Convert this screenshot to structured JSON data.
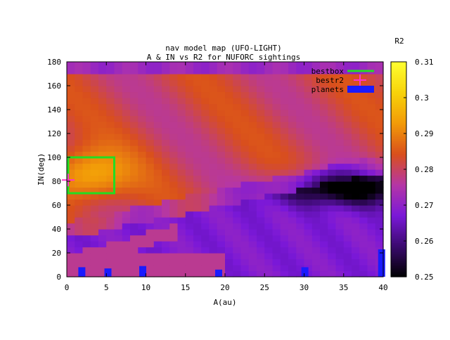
{
  "chart_data": {
    "type": "heatmap",
    "title": "nav model map (UFO-LIGHT)",
    "subtitle": "A & IN vs R2 for NUFORC sightings",
    "xlabel": "A(au)",
    "ylabel": "IN(deg)",
    "xlim": [
      0,
      40
    ],
    "ylim": [
      0,
      180
    ],
    "x_ticks": [
      "0",
      "5",
      "10",
      "15",
      "20",
      "25",
      "30",
      "35",
      "40"
    ],
    "y_ticks": [
      "0",
      "20",
      "40",
      "60",
      "80",
      "100",
      "120",
      "140",
      "160",
      "180"
    ],
    "colorbar": {
      "label": "R2",
      "range": [
        0.25,
        0.31
      ],
      "ticks": [
        "0.25",
        "0.26",
        "0.27",
        "0.28",
        "0.29",
        "0.3",
        "0.31"
      ],
      "palette": [
        "#000000",
        "#3a0a6e",
        "#7a18d8",
        "#b536a6",
        "#d94f1c",
        "#f29a08",
        "#f7d20a",
        "#ffff30"
      ]
    },
    "grid": false,
    "legend_position": "top-right",
    "legend": [
      {
        "name": "bestbox",
        "style": "line",
        "color": "#22dd22"
      },
      {
        "name": "bestr2",
        "style": "marker",
        "color": "#ff33cc"
      },
      {
        "name": "planets",
        "style": "box",
        "color": "#1a1aff"
      }
    ],
    "bestbox": {
      "x": [
        0,
        6
      ],
      "y": [
        70,
        100
      ],
      "color": "#22dd22"
    },
    "bestr2": {
      "x": 0,
      "y": 81,
      "color": "#ff33cc"
    },
    "planets": [
      {
        "x": 1.9,
        "y0": 0,
        "y1": 8
      },
      {
        "x": 5.2,
        "y0": 0,
        "y1": 7
      },
      {
        "x": 9.6,
        "y0": 0,
        "y1": 9
      },
      {
        "x": 19.2,
        "y0": 0,
        "y1": 6
      },
      {
        "x": 30.1,
        "y0": 0,
        "y1": 8
      },
      {
        "x": 39.8,
        "y0": 0,
        "y1": 23
      }
    ],
    "planet_color": "#1a1aff",
    "heatmap_resolution": {
      "nx": 40,
      "ny": 36
    },
    "surface_description": "R2 peaks (~0.29) near A 0-6 au, IN 70-100 deg; upper band IN 100-170 ~0.28; diagonal boundary rising from A~5 to A~40; low trough (~0.25) at A 25-40, IN 60-90; low IN < 40 mostly ~0.27"
  }
}
